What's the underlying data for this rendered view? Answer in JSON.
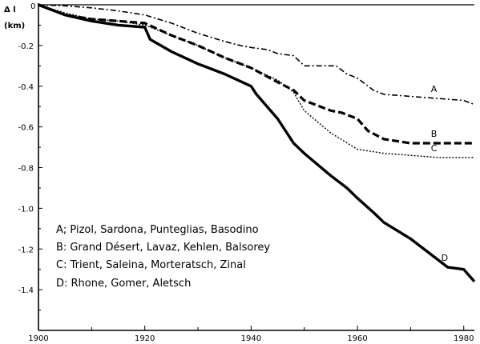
{
  "chart_data": {
    "type": "line",
    "title": "",
    "ylabel": "Δ l (km)",
    "ylabel_line1": "Δ l",
    "ylabel_line2": "(km)",
    "xlabel": "",
    "xlim": [
      1900,
      1982
    ],
    "ylim": [
      -1.6,
      0.0
    ],
    "x_ticks": [
      1900,
      1920,
      1940,
      1960,
      1980
    ],
    "x_tick_labels": [
      "1900",
      "1920",
      "1940",
      "1960",
      "1980"
    ],
    "y_ticks": [
      -0.2,
      -0.4,
      -0.6,
      -0.8,
      -1.0,
      -1.2,
      -1.4
    ],
    "y_tick_labels": [
      "-0.2",
      "-0.4",
      "-0.6",
      "-0.8",
      "-1.0",
      "-1.2",
      "-1.4"
    ],
    "y_top_label": "0",
    "grid": false,
    "legend": [
      "A; Pizol, Sardona, Punteglias, Basodino",
      "B: Grand Désert, Lavaz, Kehlen, Balsorey",
      "C: Trient, Saleina, Morteratsch, Zinal",
      "D: Rhone, Gomer, Aletsch"
    ],
    "legend_position": "bottom-left",
    "series": [
      {
        "name": "A",
        "style": "dash-dot",
        "x": [
          1900,
          1905,
          1910,
          1915,
          1920,
          1925,
          1930,
          1935,
          1938,
          1940,
          1943,
          1945,
          1948,
          1950,
          1953,
          1956,
          1958,
          1960,
          1963,
          1965,
          1970,
          1975,
          1980,
          1982
        ],
        "y": [
          0.0,
          -0.005,
          -0.015,
          -0.03,
          -0.05,
          -0.09,
          -0.14,
          -0.18,
          -0.2,
          -0.21,
          -0.22,
          -0.24,
          -0.25,
          -0.3,
          -0.3,
          -0.3,
          -0.34,
          -0.36,
          -0.42,
          -0.44,
          -0.45,
          -0.46,
          -0.47,
          -0.49
        ]
      },
      {
        "name": "B",
        "style": "dashed",
        "x": [
          1900,
          1905,
          1910,
          1915,
          1920,
          1925,
          1930,
          1935,
          1940,
          1945,
          1948,
          1950,
          1955,
          1957,
          1960,
          1962,
          1965,
          1970,
          1975,
          1980,
          1982
        ],
        "y": [
          0.0,
          -0.05,
          -0.07,
          -0.08,
          -0.09,
          -0.15,
          -0.2,
          -0.26,
          -0.31,
          -0.38,
          -0.42,
          -0.47,
          -0.52,
          -0.53,
          -0.56,
          -0.62,
          -0.66,
          -0.68,
          -0.68,
          -0.68,
          -0.68
        ]
      },
      {
        "name": "C",
        "style": "dotted",
        "x": [
          1900,
          1905,
          1910,
          1915,
          1920,
          1925,
          1930,
          1935,
          1940,
          1945,
          1948,
          1950,
          1955,
          1960,
          1965,
          1970,
          1975,
          1980,
          1982
        ],
        "y": [
          0.0,
          -0.04,
          -0.07,
          -0.08,
          -0.1,
          -0.15,
          -0.2,
          -0.26,
          -0.31,
          -0.37,
          -0.43,
          -0.52,
          -0.63,
          -0.71,
          -0.73,
          -0.74,
          -0.75,
          -0.75,
          -0.75
        ]
      },
      {
        "name": "D",
        "style": "solid-thick",
        "x": [
          1900,
          1905,
          1910,
          1915,
          1920,
          1921,
          1925,
          1930,
          1935,
          1940,
          1941,
          1945,
          1948,
          1950,
          1955,
          1958,
          1960,
          1963,
          1965,
          1970,
          1975,
          1977,
          1980,
          1982
        ],
        "y": [
          0.0,
          -0.05,
          -0.08,
          -0.1,
          -0.11,
          -0.17,
          -0.23,
          -0.29,
          -0.34,
          -0.4,
          -0.44,
          -0.56,
          -0.68,
          -0.73,
          -0.84,
          -0.9,
          -0.95,
          -1.02,
          -1.07,
          -1.15,
          -1.25,
          -1.29,
          -1.3,
          -1.36
        ]
      }
    ]
  }
}
